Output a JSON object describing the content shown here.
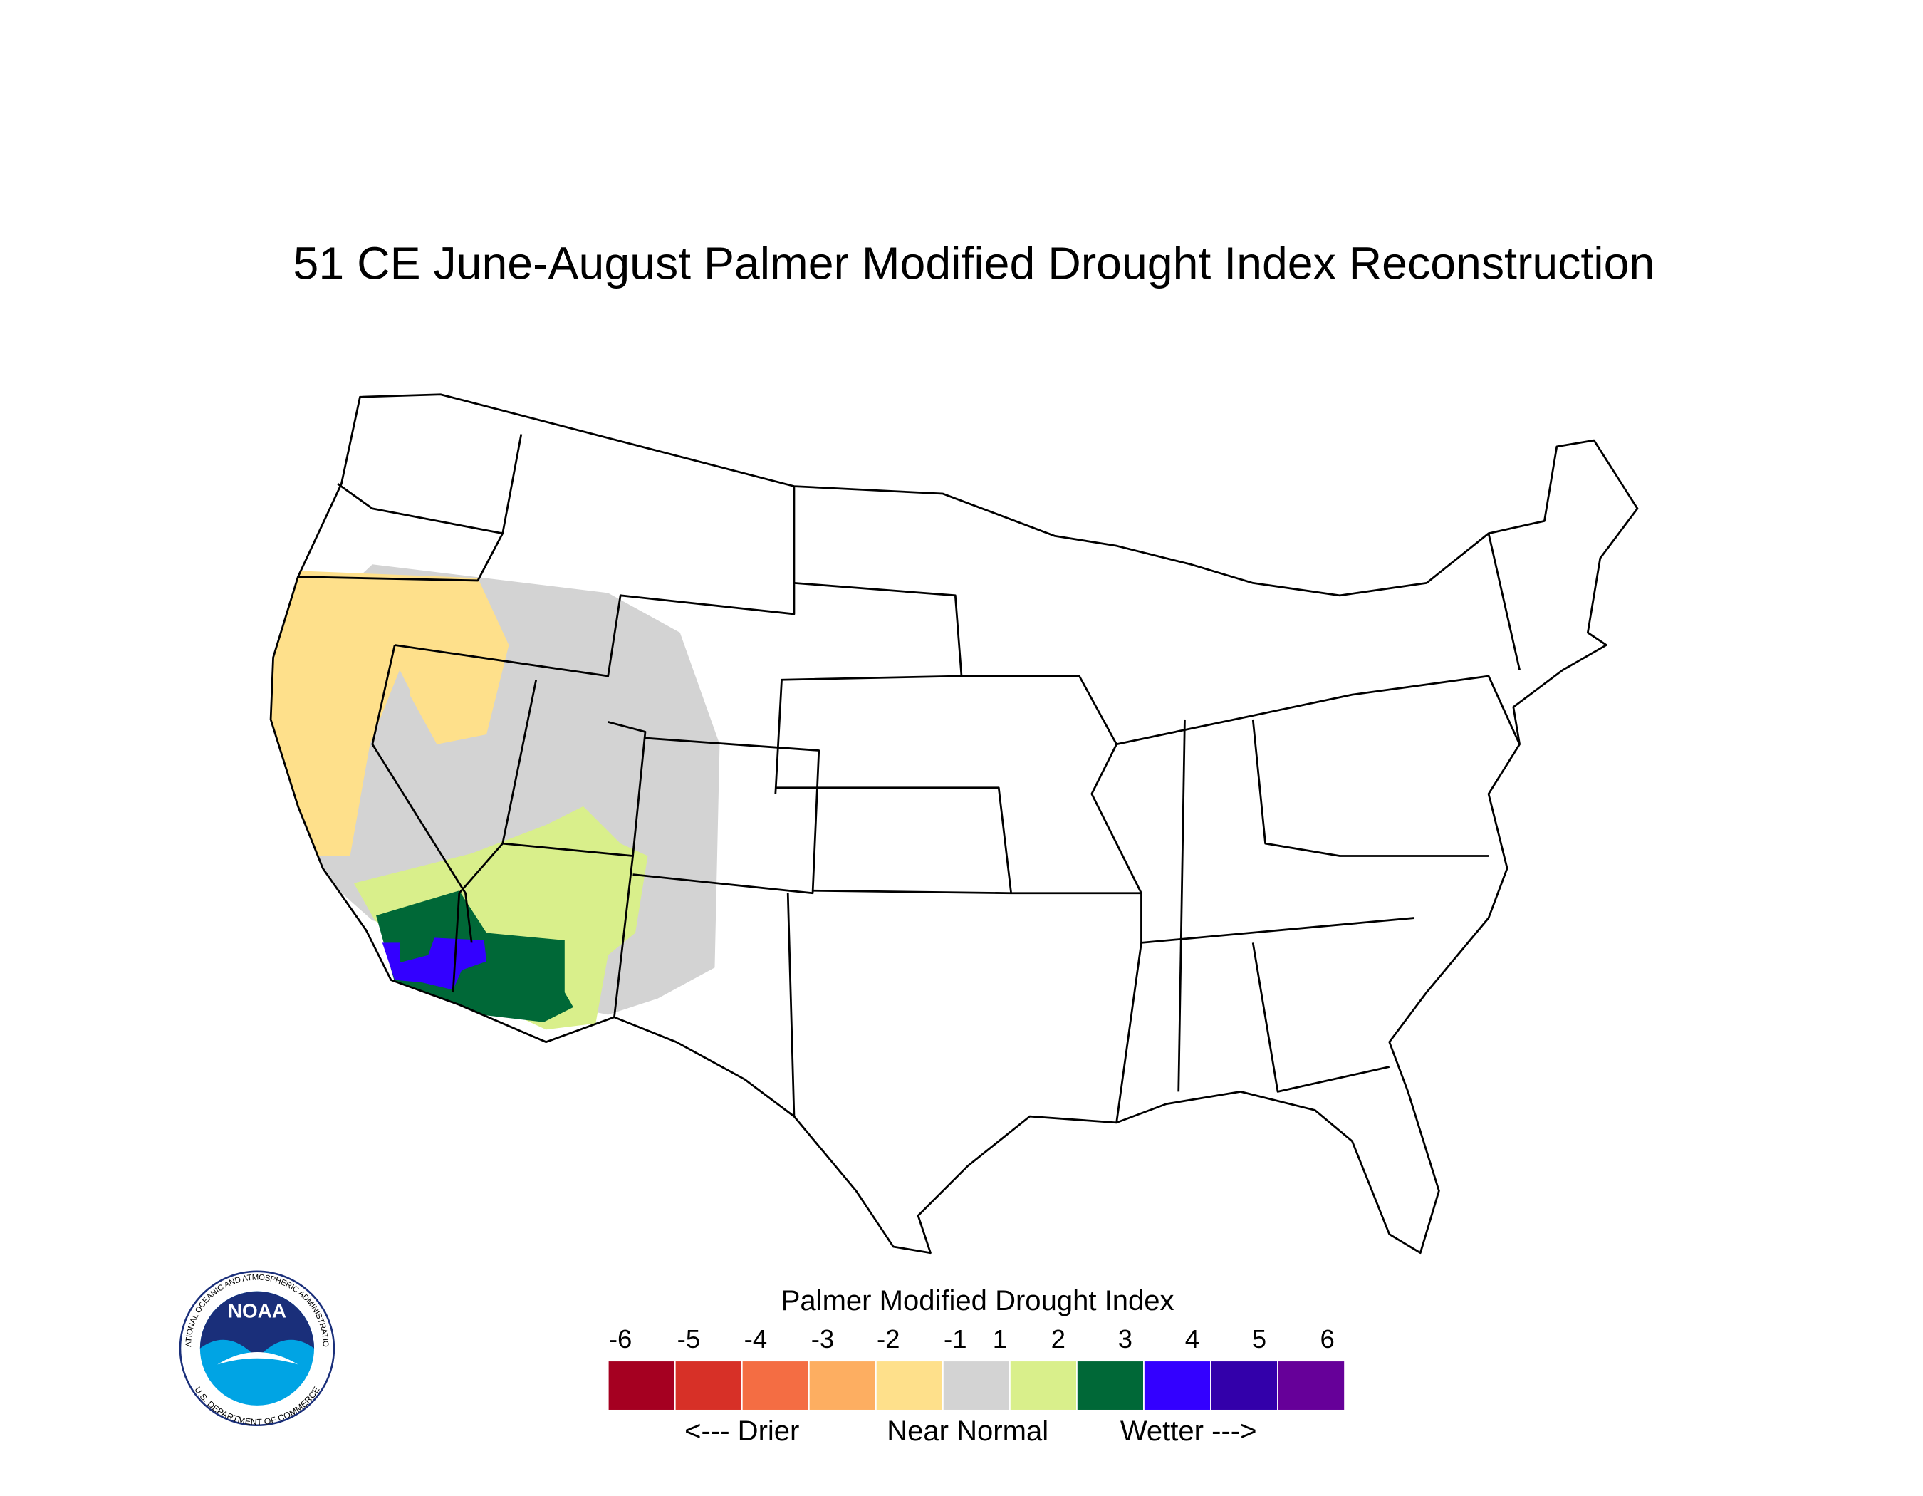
{
  "title": "51 CE  June-August  Palmer Modified Drought Index Reconstruction",
  "logo": {
    "name": "NOAA",
    "ring_top": "NATIONAL OCEANIC AND ATMOSPHERIC ADMINISTRATION",
    "ring_bottom": "U.S. DEPARTMENT OF COMMERCE"
  },
  "legend": {
    "title": "Palmer Modified Drought Index",
    "labels": [
      -6,
      -5,
      -4,
      -3,
      -2,
      -1,
      1,
      2,
      3,
      4,
      5,
      6
    ],
    "colors": [
      "#a50021",
      "#d73027",
      "#f46d43",
      "#fdae61",
      "#fee08b",
      "#d3d3d3",
      "#d9ef8b",
      "#006837",
      "#3300ff",
      "#3300aa",
      "#660099"
    ],
    "descriptors": [
      "<--- Drier",
      "Near Normal",
      "Wetter --->"
    ]
  }
}
